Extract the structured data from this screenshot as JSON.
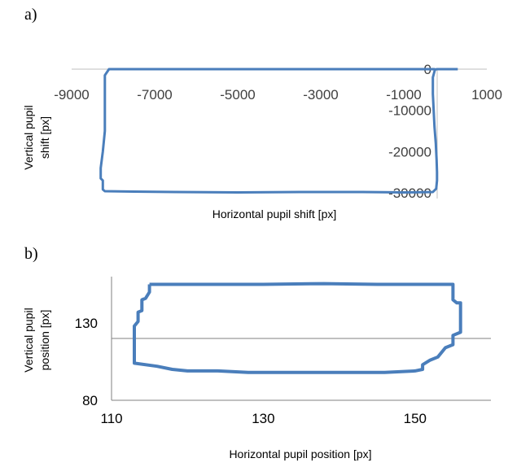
{
  "chart_data": [
    {
      "panel_label": "a)",
      "type": "line",
      "xlabel": "Horizontal pupil shift [px]",
      "ylabel": [
        "Vertical pupil",
        "shift [px]"
      ],
      "x_ticks": [
        "-9000",
        "-7000",
        "-5000",
        "-3000",
        "-1000",
        "1000"
      ],
      "y_ticks": [
        "0",
        "-10000",
        "-20000",
        "-30000"
      ],
      "xlim": [
        -9000,
        1000
      ],
      "ylim": [
        -30000,
        0
      ],
      "grid": false,
      "color": "#4a7ebb",
      "series": [
        {
          "x": [
            300,
            -150,
            -200,
            -250,
            -300,
            -300,
            -280,
            -260,
            -230,
            -210,
            -200,
            -200,
            -220,
            -300,
            -1000,
            -2000,
            -3500,
            -5000,
            -6500,
            -7500,
            -8200,
            -8250,
            -8250,
            -8300,
            -8300,
            -8250,
            -8200,
            -8200,
            -8200,
            -8200,
            -8100,
            -7000,
            -5500,
            -4000,
            -2500,
            -1000,
            -400,
            -300,
            -250
          ],
          "y": [
            0,
            0,
            0,
            -100,
            -2000,
            -6000,
            -10000,
            -14000,
            -18000,
            -22000,
            -25000,
            -27000,
            -29000,
            -29800,
            -29900,
            -29800,
            -29800,
            -29900,
            -29800,
            -29700,
            -29600,
            -29200,
            -27000,
            -26500,
            -24000,
            -20000,
            -15000,
            -10000,
            -5000,
            -1500,
            0,
            0,
            0,
            0,
            0,
            0,
            0,
            0,
            0
          ]
        }
      ]
    },
    {
      "panel_label": "b)",
      "type": "line",
      "xlabel": "Horizontal pupil position [px]",
      "ylabel": [
        "Vertical pupil",
        "position [px]"
      ],
      "x_ticks": [
        "110",
        "130",
        "150"
      ],
      "y_ticks": [
        "130",
        "80"
      ],
      "xlim": [
        110,
        160
      ],
      "ylim": [
        80,
        160
      ],
      "grid": true,
      "color": "#4a7ebb",
      "series": [
        {
          "x": [
            115,
            130,
            138,
            145,
            155,
            155,
            155.5,
            156,
            156,
            155,
            155,
            154,
            153,
            152,
            151,
            151,
            150,
            146,
            140,
            136,
            132,
            128,
            124,
            120,
            118,
            116,
            113,
            113,
            113,
            113.5,
            113.5,
            114,
            114,
            114.5,
            115,
            115
          ],
          "y": [
            155,
            155,
            155.5,
            155,
            155,
            145,
            143,
            143,
            124,
            122,
            116,
            114,
            108,
            106,
            103,
            100,
            99,
            98,
            98,
            98,
            98,
            98,
            99,
            99,
            100,
            102,
            104,
            115,
            128,
            131,
            137,
            138,
            145,
            146,
            150,
            155
          ]
        }
      ]
    }
  ]
}
